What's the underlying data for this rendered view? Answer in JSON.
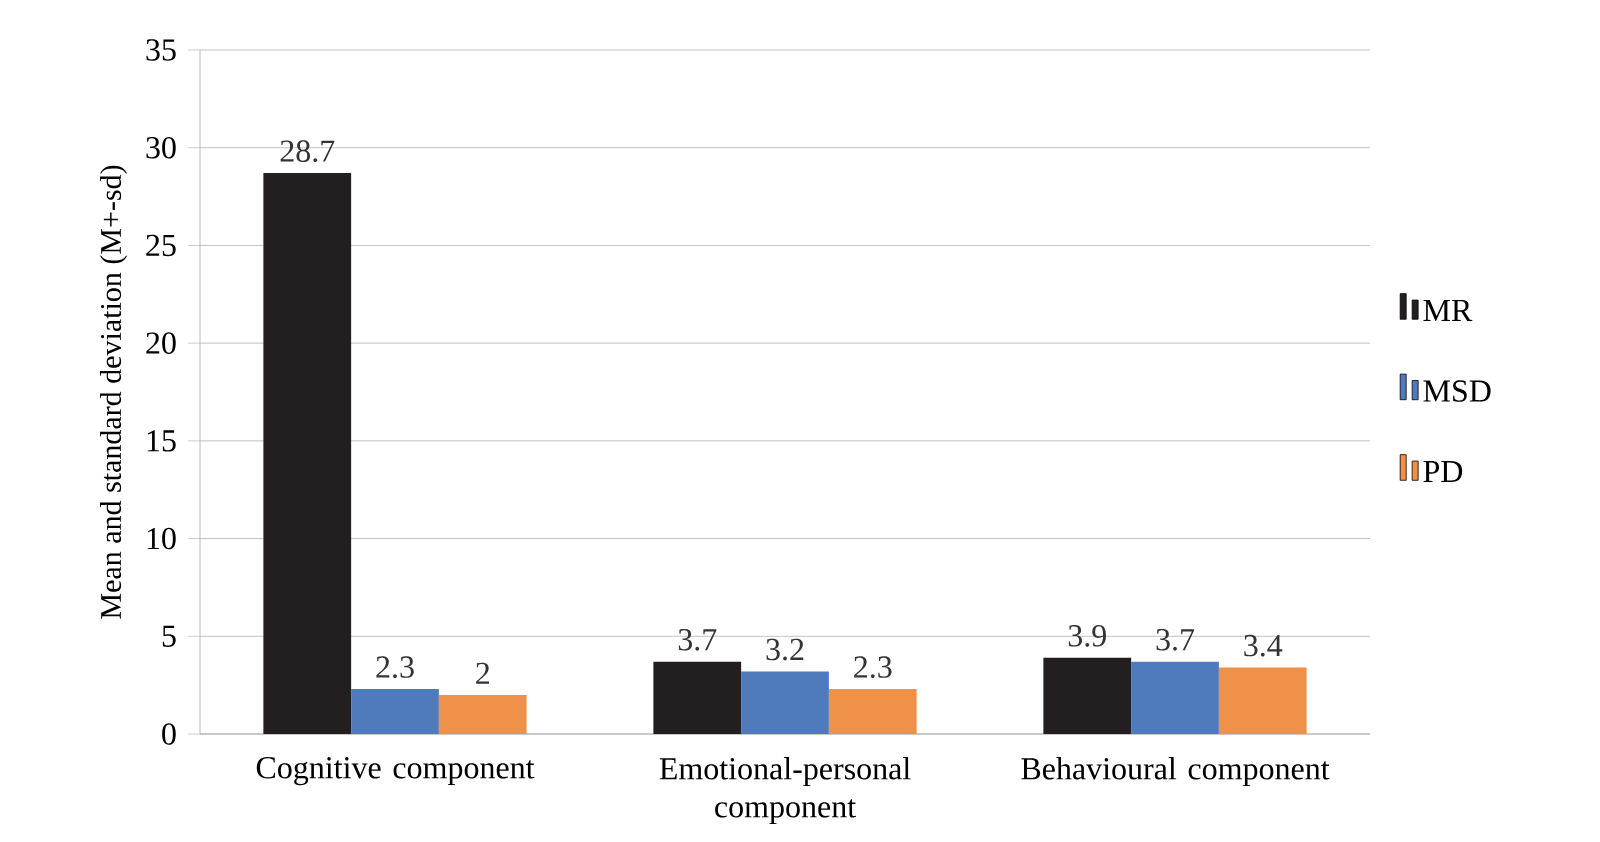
{
  "chart_data": {
    "type": "bar",
    "ylabel": "Mean and standard deviation (M+-sd)",
    "categories": [
      "Cognitive component",
      "Emotional-personal component",
      "Behavioural component"
    ],
    "series": [
      {
        "name": "MR",
        "color": "#231f20",
        "values": [
          28.7,
          3.7,
          3.9
        ]
      },
      {
        "name": "MSD",
        "color": "#4f7bbd",
        "values": [
          2.3,
          3.2,
          3.7
        ]
      },
      {
        "name": "PD",
        "color": "#f0914a",
        "values": [
          2,
          2.3,
          3.4
        ]
      }
    ],
    "ylim": [
      0,
      35
    ],
    "yticks": [
      0,
      5,
      10,
      15,
      20,
      25,
      30,
      35
    ],
    "grid": "y",
    "legend": "right",
    "data_labels": true
  }
}
